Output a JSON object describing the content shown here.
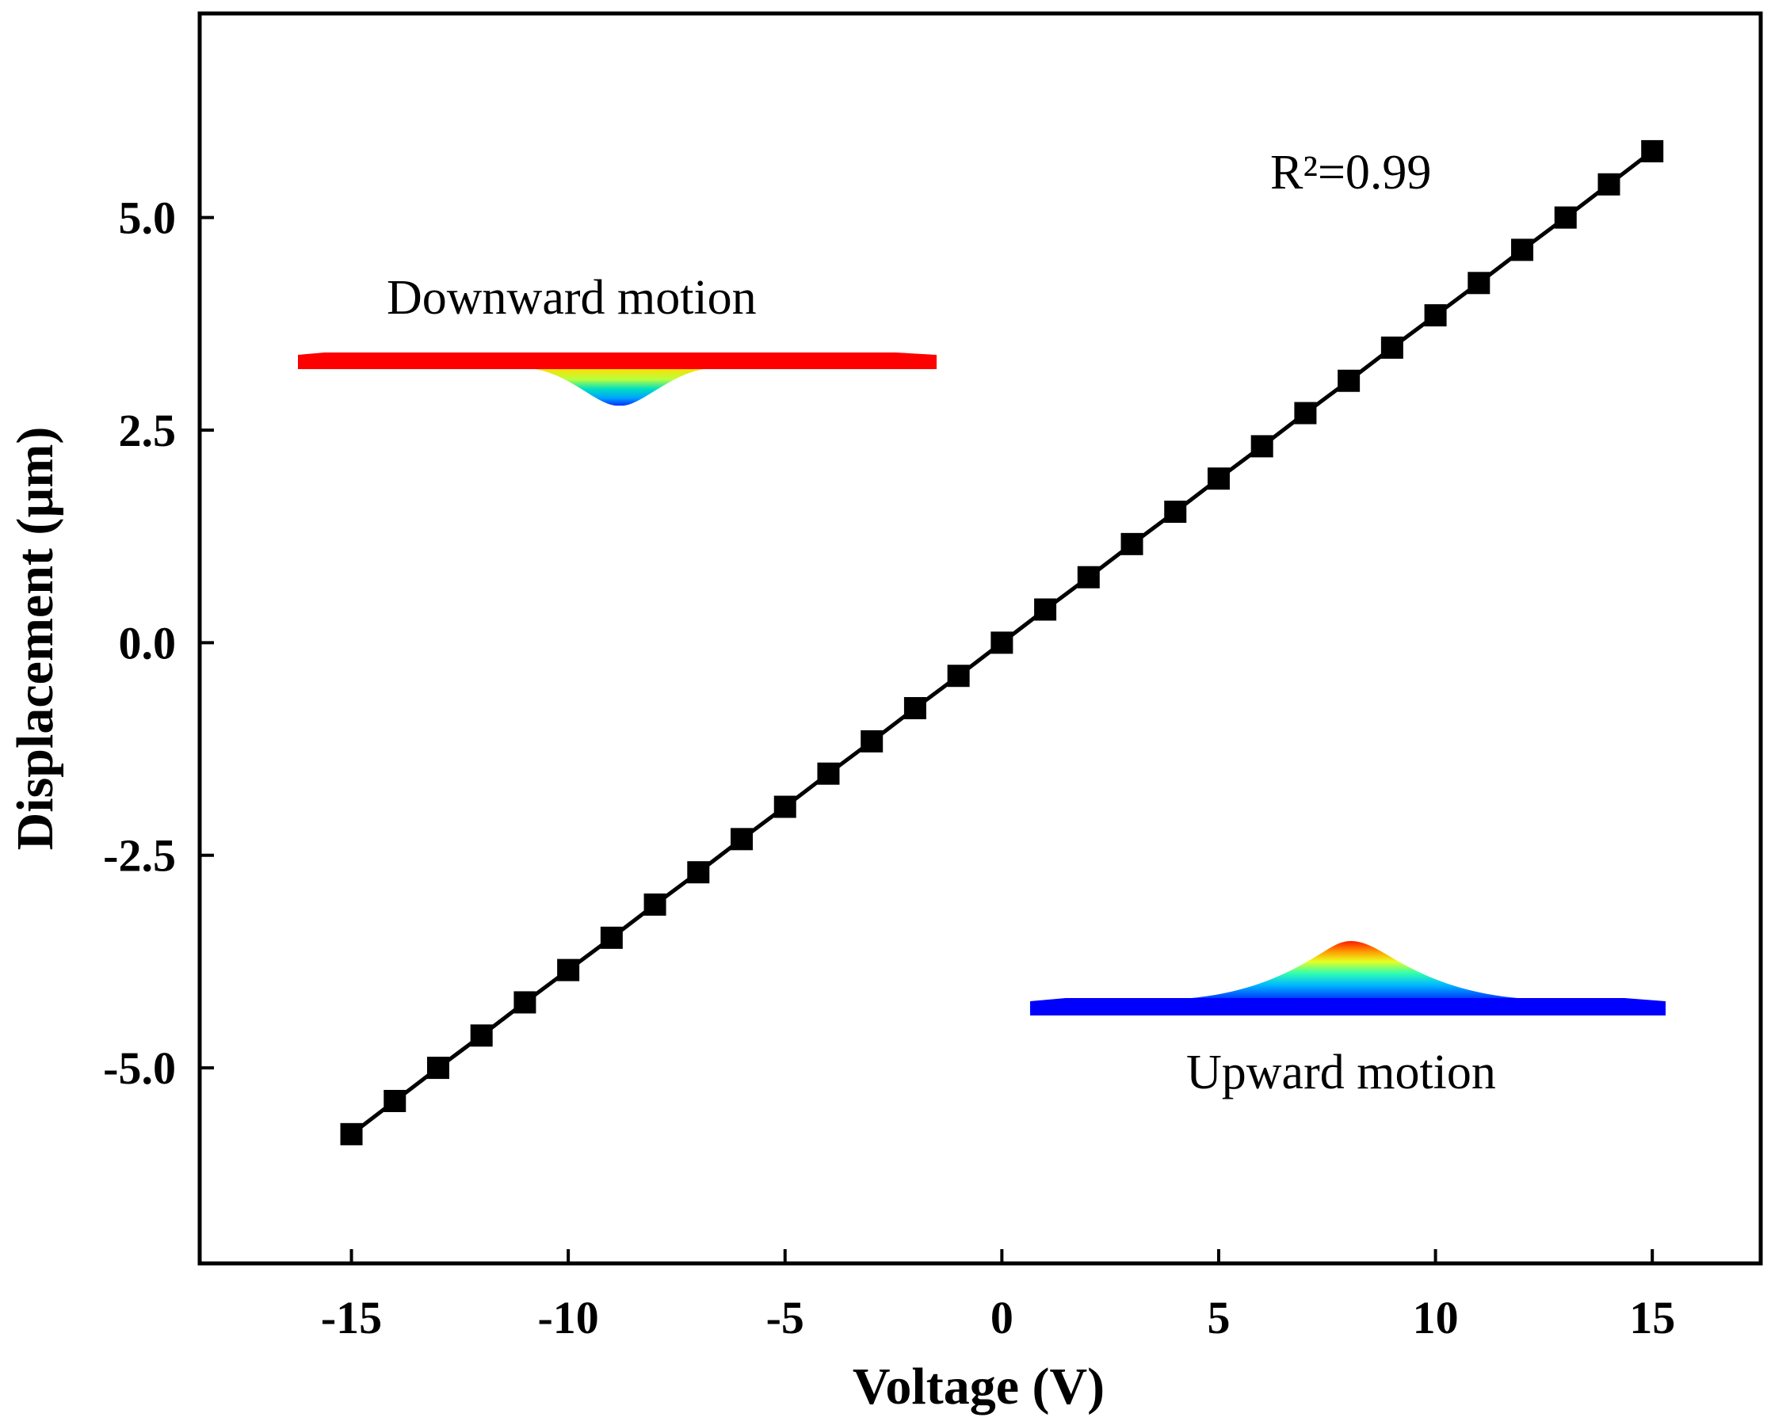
{
  "chart_data": {
    "type": "line",
    "title": "",
    "xlabel": "Voltage (V)",
    "ylabel": "Displacement (µm)",
    "xlim": [
      -18.5,
      17.5
    ],
    "ylim": [
      -7.3,
      7.4
    ],
    "xticks": [
      -15,
      -10,
      -5,
      0,
      5,
      10,
      15
    ],
    "xtick_labels": [
      "-15",
      "-10",
      "-5",
      "0",
      "5",
      "10",
      "15"
    ],
    "yticks": [
      -5.0,
      -2.5,
      0.0,
      2.5,
      5.0
    ],
    "ytick_labels": [
      "-5.0",
      "-2.5",
      "0.0",
      "2.5",
      "5.0"
    ],
    "grid": false,
    "series": [
      {
        "name": "Displacement",
        "marker": "square",
        "color": "#000000",
        "x": [
          -15,
          -14,
          -13,
          -12,
          -11,
          -10,
          -9,
          -8,
          -7,
          -6,
          -5,
          -4,
          -3,
          -2,
          -1,
          0,
          1,
          2,
          3,
          4,
          5,
          6,
          7,
          8,
          9,
          10,
          11,
          12,
          13,
          14,
          15
        ],
        "y": [
          -5.78,
          -5.39,
          -5.0,
          -4.62,
          -4.23,
          -3.85,
          -3.47,
          -3.08,
          -2.7,
          -2.31,
          -1.93,
          -1.54,
          -1.16,
          -0.77,
          -0.39,
          0.0,
          0.39,
          0.77,
          1.16,
          1.54,
          1.93,
          2.31,
          2.7,
          3.08,
          3.47,
          3.85,
          4.23,
          4.62,
          5.0,
          5.39,
          5.78
        ]
      }
    ],
    "annotations": {
      "r_squared": "R²=0.99",
      "downward_label": "Downward motion",
      "upward_label": "Upward motion"
    }
  },
  "colors": {
    "line": "#000000",
    "downward_membrane": "#ff0000",
    "upward_membrane": "#0000ff"
  }
}
